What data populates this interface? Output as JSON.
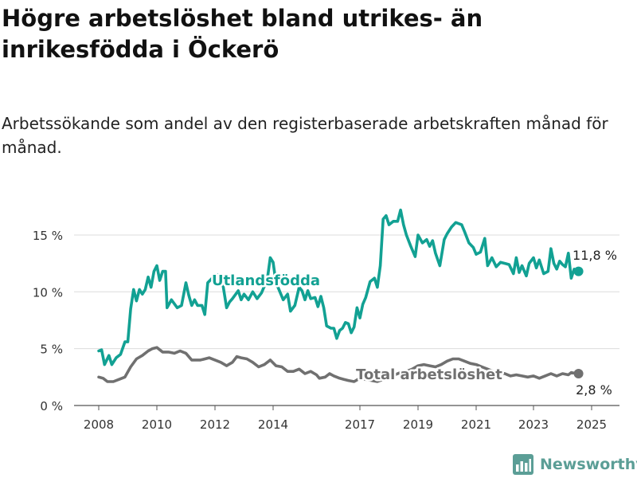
{
  "title": "Högre arbetslöshet bland utrikes- än inrikesfödda i Öckerö",
  "subtitle": "Arbetssökande som andel av den registerbaserade arbetskraften månad för månad.",
  "brand": {
    "name": "Newsworthy",
    "icon": "newsworthy-logo-icon",
    "color": "#5b9e96"
  },
  "chart_data": {
    "type": "line",
    "title": "Högre arbetslöshet bland utrikes- än inrikesfödda i Öckerö",
    "subtitle": "Arbetssökande som andel av den registerbaserade arbetskraften månad för månad.",
    "xlabel": "",
    "ylabel": "",
    "x_ticks": [
      "2008",
      "2010",
      "2012",
      "2014",
      "2017",
      "2019",
      "2021",
      "2023",
      "2025"
    ],
    "y_ticks": [
      "0 %",
      "5 %",
      "10 %",
      "15 %"
    ],
    "ylim": [
      0,
      17
    ],
    "grid": "horizontal",
    "series": [
      {
        "name": "Utlandsfödda",
        "color": "#12a193",
        "end_label": "11,8 %",
        "points": [
          [
            2008.0,
            4.8
          ],
          [
            2008.1,
            4.9
          ],
          [
            2008.2,
            3.6
          ],
          [
            2008.35,
            4.4
          ],
          [
            2008.45,
            3.6
          ],
          [
            2008.6,
            4.2
          ],
          [
            2008.75,
            4.5
          ],
          [
            2008.9,
            5.6
          ],
          [
            2009.0,
            5.6
          ],
          [
            2009.1,
            8.5
          ],
          [
            2009.2,
            10.2
          ],
          [
            2009.3,
            9.2
          ],
          [
            2009.4,
            10.2
          ],
          [
            2009.5,
            9.8
          ],
          [
            2009.6,
            10.2
          ],
          [
            2009.7,
            11.3
          ],
          [
            2009.8,
            10.4
          ],
          [
            2009.9,
            11.8
          ],
          [
            2010.0,
            12.3
          ],
          [
            2010.1,
            11.0
          ],
          [
            2010.2,
            11.8
          ],
          [
            2010.3,
            11.8
          ],
          [
            2010.35,
            8.6
          ],
          [
            2010.5,
            9.3
          ],
          [
            2010.7,
            8.6
          ],
          [
            2010.85,
            8.8
          ],
          [
            2011.0,
            10.8
          ],
          [
            2011.1,
            9.7
          ],
          [
            2011.2,
            8.8
          ],
          [
            2011.3,
            9.3
          ],
          [
            2011.4,
            8.8
          ],
          [
            2011.55,
            8.8
          ],
          [
            2011.65,
            8.0
          ],
          [
            2011.75,
            10.8
          ],
          [
            2011.9,
            11.2
          ],
          [
            2012.1,
            11.5
          ],
          [
            2012.25,
            11.0
          ],
          [
            2012.4,
            8.6
          ],
          [
            2012.5,
            9.1
          ],
          [
            2012.6,
            9.4
          ],
          [
            2012.8,
            10.1
          ],
          [
            2012.9,
            9.3
          ],
          [
            2013.0,
            9.8
          ],
          [
            2013.15,
            9.3
          ],
          [
            2013.3,
            10.0
          ],
          [
            2013.45,
            9.4
          ],
          [
            2013.6,
            9.9
          ],
          [
            2013.8,
            11.1
          ],
          [
            2013.9,
            13.0
          ],
          [
            2014.0,
            12.6
          ],
          [
            2014.1,
            10.8
          ],
          [
            2014.2,
            10.2
          ],
          [
            2014.35,
            9.3
          ],
          [
            2014.5,
            9.8
          ],
          [
            2014.6,
            8.3
          ],
          [
            2014.75,
            8.8
          ],
          [
            2014.9,
            10.4
          ],
          [
            2015.0,
            10.1
          ],
          [
            2015.1,
            9.3
          ],
          [
            2015.2,
            10.1
          ],
          [
            2015.3,
            9.4
          ],
          [
            2015.45,
            9.5
          ],
          [
            2015.55,
            8.7
          ],
          [
            2015.65,
            9.6
          ],
          [
            2015.75,
            8.6
          ],
          [
            2015.85,
            7.0
          ],
          [
            2016.0,
            6.8
          ],
          [
            2016.1,
            6.8
          ],
          [
            2016.2,
            5.9
          ],
          [
            2016.3,
            6.6
          ],
          [
            2016.4,
            6.8
          ],
          [
            2016.5,
            7.3
          ],
          [
            2016.6,
            7.2
          ],
          [
            2016.7,
            6.4
          ],
          [
            2016.8,
            6.9
          ],
          [
            2016.9,
            8.6
          ],
          [
            2017.0,
            7.7
          ],
          [
            2017.1,
            8.9
          ],
          [
            2017.2,
            9.5
          ],
          [
            2017.35,
            10.9
          ],
          [
            2017.5,
            11.2
          ],
          [
            2017.6,
            10.4
          ],
          [
            2017.7,
            12.3
          ],
          [
            2017.8,
            16.4
          ],
          [
            2017.9,
            16.7
          ],
          [
            2018.0,
            15.9
          ],
          [
            2018.15,
            16.2
          ],
          [
            2018.3,
            16.2
          ],
          [
            2018.4,
            17.2
          ],
          [
            2018.5,
            15.9
          ],
          [
            2018.6,
            15.0
          ],
          [
            2018.75,
            14.0
          ],
          [
            2018.9,
            13.1
          ],
          [
            2019.0,
            15.0
          ],
          [
            2019.15,
            14.3
          ],
          [
            2019.3,
            14.6
          ],
          [
            2019.4,
            14.0
          ],
          [
            2019.5,
            14.5
          ],
          [
            2019.6,
            13.4
          ],
          [
            2019.75,
            12.3
          ],
          [
            2019.9,
            14.6
          ],
          [
            2020.0,
            15.1
          ],
          [
            2020.15,
            15.7
          ],
          [
            2020.3,
            16.1
          ],
          [
            2020.5,
            15.9
          ],
          [
            2020.6,
            15.3
          ],
          [
            2020.75,
            14.3
          ],
          [
            2020.9,
            13.9
          ],
          [
            2021.0,
            13.3
          ],
          [
            2021.15,
            13.5
          ],
          [
            2021.3,
            14.7
          ],
          [
            2021.4,
            12.3
          ],
          [
            2021.55,
            13.0
          ],
          [
            2021.7,
            12.2
          ],
          [
            2021.85,
            12.6
          ],
          [
            2022.0,
            12.5
          ],
          [
            2022.15,
            12.4
          ],
          [
            2022.3,
            11.6
          ],
          [
            2022.4,
            13.0
          ],
          [
            2022.5,
            11.7
          ],
          [
            2022.6,
            12.3
          ],
          [
            2022.75,
            11.4
          ],
          [
            2022.85,
            12.5
          ],
          [
            2023.0,
            13.0
          ],
          [
            2023.1,
            12.1
          ],
          [
            2023.2,
            12.8
          ],
          [
            2023.35,
            11.6
          ],
          [
            2023.5,
            11.8
          ],
          [
            2023.6,
            13.8
          ],
          [
            2023.7,
            12.5
          ],
          [
            2023.8,
            12.0
          ],
          [
            2023.9,
            12.7
          ],
          [
            2024.0,
            12.4
          ],
          [
            2024.1,
            12.2
          ],
          [
            2024.2,
            13.4
          ],
          [
            2024.3,
            11.2
          ],
          [
            2024.4,
            12.0
          ],
          [
            2024.5,
            11.8
          ]
        ]
      },
      {
        "name": "Total arbetslöshet",
        "color": "#707070",
        "end_label": "2,8 %",
        "points": [
          [
            2008.0,
            2.5
          ],
          [
            2008.15,
            2.4
          ],
          [
            2008.3,
            2.1
          ],
          [
            2008.5,
            2.1
          ],
          [
            2008.7,
            2.3
          ],
          [
            2008.9,
            2.5
          ],
          [
            2009.1,
            3.4
          ],
          [
            2009.3,
            4.1
          ],
          [
            2009.5,
            4.4
          ],
          [
            2009.7,
            4.8
          ],
          [
            2009.85,
            5.0
          ],
          [
            2010.0,
            5.1
          ],
          [
            2010.2,
            4.7
          ],
          [
            2010.4,
            4.7
          ],
          [
            2010.6,
            4.6
          ],
          [
            2010.8,
            4.8
          ],
          [
            2011.0,
            4.6
          ],
          [
            2011.2,
            4.0
          ],
          [
            2011.5,
            4.0
          ],
          [
            2011.8,
            4.2
          ],
          [
            2012.0,
            4.0
          ],
          [
            2012.2,
            3.8
          ],
          [
            2012.4,
            3.5
          ],
          [
            2012.6,
            3.8
          ],
          [
            2012.75,
            4.3
          ],
          [
            2012.9,
            4.2
          ],
          [
            2013.1,
            4.1
          ],
          [
            2013.3,
            3.8
          ],
          [
            2013.5,
            3.4
          ],
          [
            2013.7,
            3.6
          ],
          [
            2013.9,
            4.0
          ],
          [
            2014.1,
            3.5
          ],
          [
            2014.3,
            3.4
          ],
          [
            2014.5,
            3.0
          ],
          [
            2014.7,
            3.0
          ],
          [
            2014.9,
            3.2
          ],
          [
            2015.1,
            2.8
          ],
          [
            2015.3,
            3.0
          ],
          [
            2015.5,
            2.7
          ],
          [
            2015.6,
            2.4
          ],
          [
            2015.8,
            2.5
          ],
          [
            2015.95,
            2.8
          ],
          [
            2016.1,
            2.6
          ],
          [
            2016.3,
            2.4
          ],
          [
            2016.45,
            2.3
          ],
          [
            2016.6,
            2.2
          ],
          [
            2016.8,
            2.1
          ],
          [
            2017.0,
            2.4
          ],
          [
            2017.2,
            2.3
          ],
          [
            2017.4,
            2.2
          ],
          [
            2017.6,
            2.1
          ],
          [
            2017.8,
            2.3
          ],
          [
            2018.0,
            2.5
          ],
          [
            2018.2,
            2.7
          ],
          [
            2018.4,
            2.9
          ],
          [
            2018.6,
            3.0
          ],
          [
            2018.8,
            3.2
          ],
          [
            2019.0,
            3.5
          ],
          [
            2019.2,
            3.6
          ],
          [
            2019.4,
            3.5
          ],
          [
            2019.6,
            3.4
          ],
          [
            2019.8,
            3.6
          ],
          [
            2020.0,
            3.9
          ],
          [
            2020.2,
            4.1
          ],
          [
            2020.4,
            4.1
          ],
          [
            2020.6,
            3.9
          ],
          [
            2020.8,
            3.7
          ],
          [
            2021.0,
            3.6
          ],
          [
            2021.2,
            3.4
          ],
          [
            2021.4,
            3.2
          ],
          [
            2021.6,
            3.0
          ],
          [
            2021.8,
            2.9
          ],
          [
            2022.0,
            2.8
          ],
          [
            2022.2,
            2.6
          ],
          [
            2022.4,
            2.7
          ],
          [
            2022.6,
            2.6
          ],
          [
            2022.8,
            2.5
          ],
          [
            2023.0,
            2.6
          ],
          [
            2023.2,
            2.4
          ],
          [
            2023.4,
            2.6
          ],
          [
            2023.6,
            2.8
          ],
          [
            2023.8,
            2.6
          ],
          [
            2024.0,
            2.8
          ],
          [
            2024.2,
            2.7
          ],
          [
            2024.3,
            2.9
          ],
          [
            2024.5,
            2.8
          ]
        ]
      }
    ]
  }
}
